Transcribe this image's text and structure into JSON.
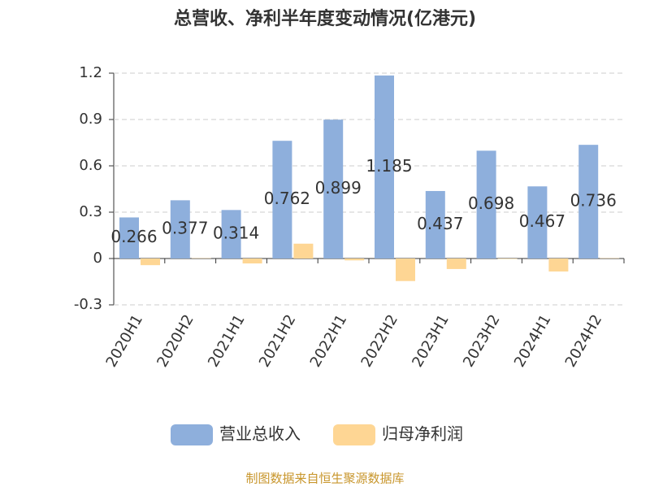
{
  "chart_data": {
    "type": "bar",
    "title": "总营收、净利半年度变动情况(亿港元)",
    "categories": [
      "2020H1",
      "2020H2",
      "2021H1",
      "2021H2",
      "2022H1",
      "2022H2",
      "2023H1",
      "2023H2",
      "2024H1",
      "2024H2"
    ],
    "series": [
      {
        "name": "营业总收入",
        "color": "#8eafdc",
        "values": [
          0.266,
          0.377,
          0.314,
          0.762,
          0.899,
          1.185,
          0.437,
          0.698,
          0.467,
          0.736
        ]
      },
      {
        "name": "归母净利润",
        "color": "#fed694",
        "values": [
          -0.043,
          0.002,
          -0.032,
          0.096,
          -0.012,
          -0.146,
          -0.068,
          -0.003,
          -0.084,
          0.002
        ]
      }
    ],
    "ylim": [
      -0.3,
      1.2
    ],
    "yticks": [
      -0.3,
      0,
      0.3,
      0.6,
      0.9,
      1.2
    ],
    "grid": true,
    "source": "制图数据来自恒生聚源数据库"
  }
}
